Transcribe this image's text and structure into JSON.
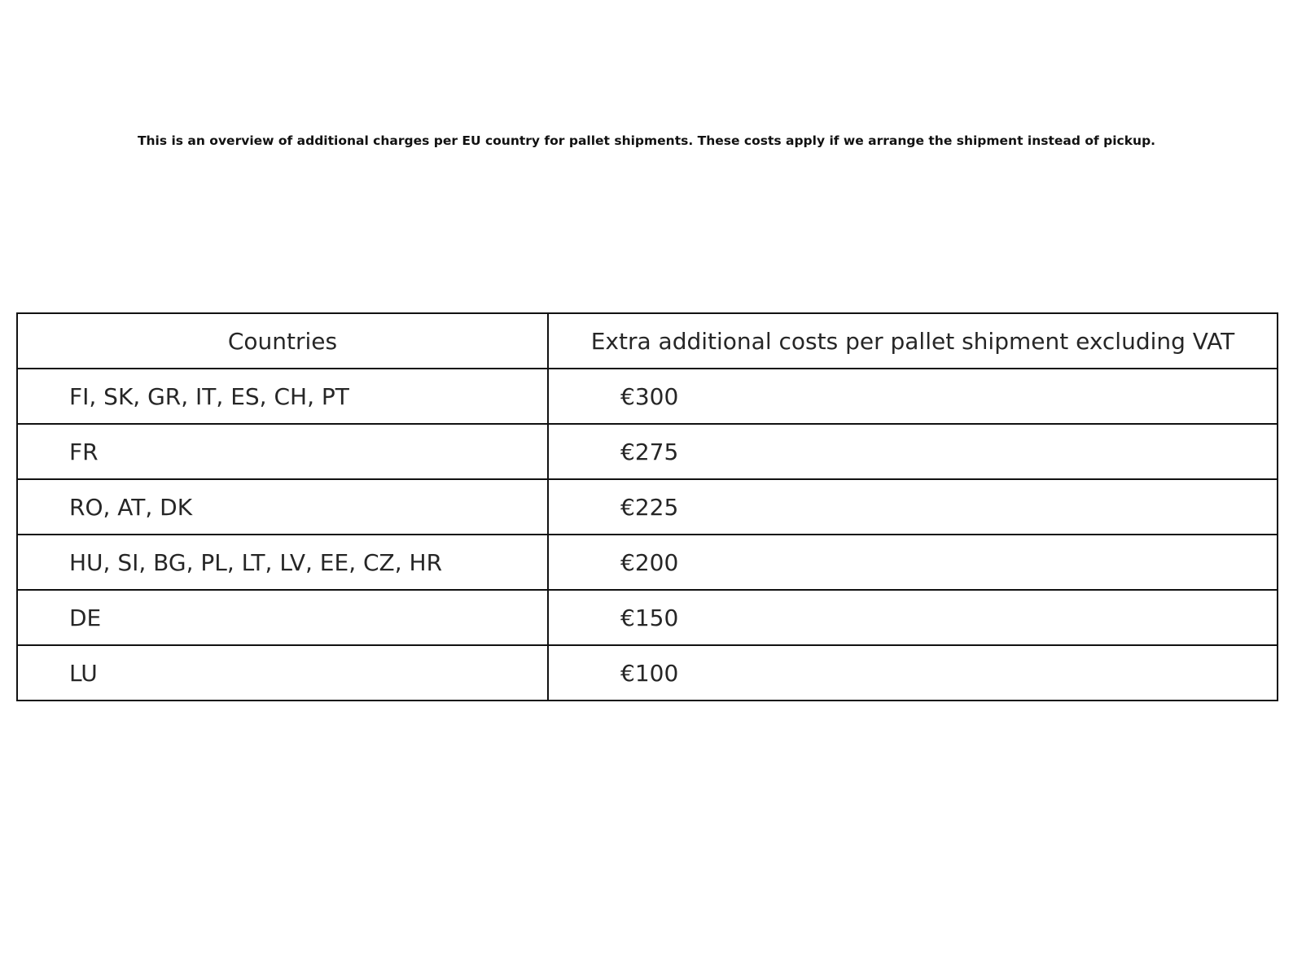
{
  "note": "This is an overview of additional charges per EU country for pallet shipments. These costs apply if we arrange the shipment instead of pickup.",
  "table": {
    "headers": [
      "Countries",
      "Extra additional costs per pallet shipment excluding VAT"
    ],
    "rows": [
      [
        "FI, SK, GR, IT, ES, CH, PT",
        "€300"
      ],
      [
        "FR",
        "€275"
      ],
      [
        "RO, AT, DK",
        "€225"
      ],
      [
        "HU, SI, BG, PL, LT, LV, EE, CZ, HR",
        "€200"
      ],
      [
        "DE",
        "€150"
      ],
      [
        "LU",
        "€100"
      ]
    ]
  }
}
